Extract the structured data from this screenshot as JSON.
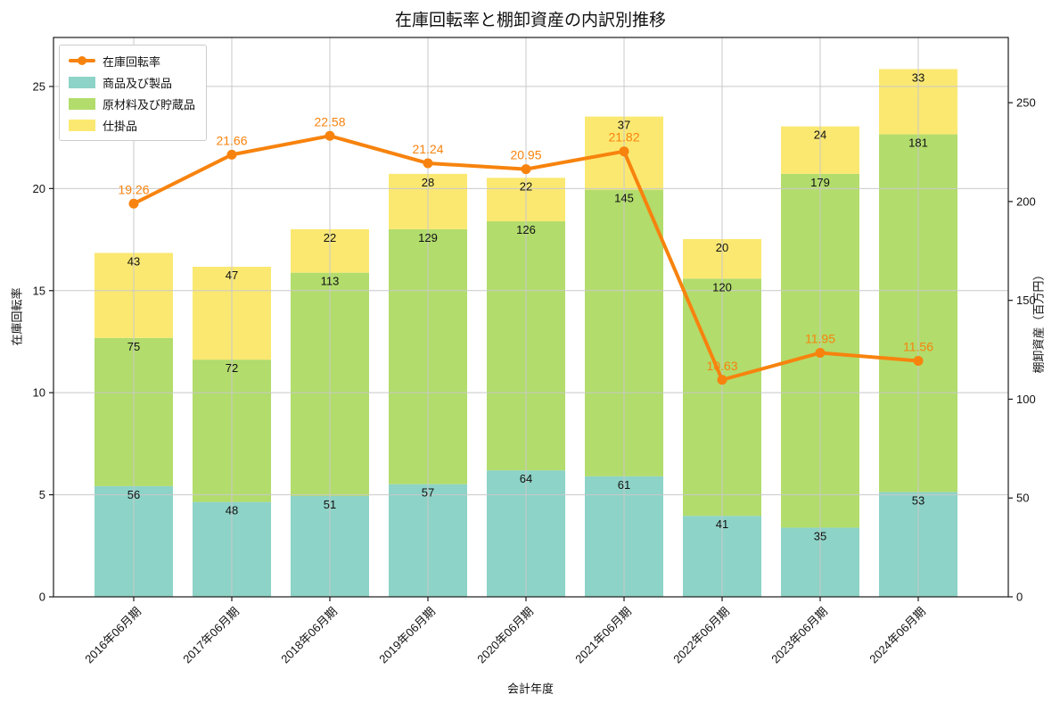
{
  "chart_data": {
    "type": "bar",
    "stacked": true,
    "title": "在庫回転率と棚卸資産の内訳別推移",
    "xlabel": "会計年度",
    "categories": [
      "2016年06月期",
      "2017年06月期",
      "2018年06月期",
      "2019年06月期",
      "2020年06月期",
      "2021年06月期",
      "2022年06月期",
      "2023年06月期",
      "2024年06月期"
    ],
    "bar_series": [
      {
        "name": "商品及び製品",
        "color": "#8dd3c7",
        "values": [
          56,
          48,
          51,
          57,
          64,
          61,
          41,
          35,
          53
        ]
      },
      {
        "name": "原材料及び貯蔵品",
        "color": "#b2dc6c",
        "values": [
          75,
          72,
          113,
          129,
          126,
          145,
          120,
          179,
          181
        ]
      },
      {
        "name": "仕掛品",
        "color": "#fbe871",
        "values": [
          43,
          47,
          22,
          28,
          22,
          37,
          20,
          24,
          33
        ]
      }
    ],
    "line_series": {
      "name": "在庫回転率",
      "color": "#f7830e",
      "axis": "left",
      "values": [
        19.26,
        21.66,
        22.58,
        21.24,
        20.95,
        21.82,
        10.63,
        11.95,
        11.56
      ]
    },
    "left_axis": {
      "label": "在庫回転率",
      "ticks": [
        0,
        5,
        10,
        15,
        20,
        25
      ],
      "min": 0,
      "max": 27.4
    },
    "right_axis": {
      "label": "棚卸資産（百万円）",
      "ticks": [
        0,
        50,
        100,
        150,
        200,
        250
      ],
      "min": 0,
      "max": 283
    },
    "grid": true,
    "grid_color": "#c9c9c9",
    "spine_color": "#1a1a1a",
    "bar_label_color": "#111111",
    "legend_position": "upper-left"
  }
}
